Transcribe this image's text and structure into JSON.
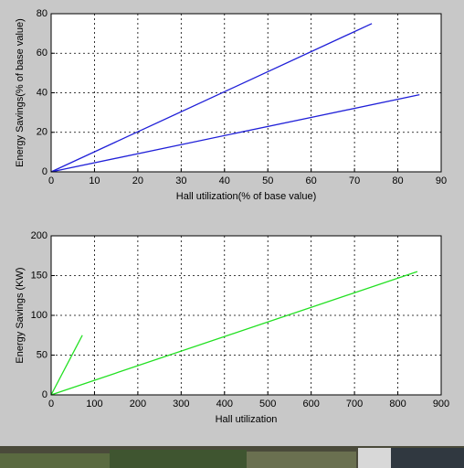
{
  "chart_data": [
    {
      "type": "line",
      "xlabel": "Hall utilization(% of base value)",
      "ylabel": "Energy Savings(% of base value)",
      "xlim": [
        0,
        90
      ],
      "xticks": [
        0,
        10,
        20,
        30,
        40,
        50,
        60,
        70,
        80,
        90
      ],
      "ylim": [
        0,
        80
      ],
      "yticks": [
        0,
        20,
        40,
        60,
        80
      ],
      "grid": true,
      "series": [
        {
          "color": "#2020d8",
          "x": [
            0,
            74
          ],
          "values": [
            0,
            75
          ]
        },
        {
          "color": "#2020d8",
          "x": [
            0,
            85
          ],
          "values": [
            0,
            39
          ]
        }
      ]
    },
    {
      "type": "line",
      "xlabel": "Hall utilization",
      "ylabel": "Energy Savings (KW)",
      "xlim": [
        0,
        900
      ],
      "xticks": [
        0,
        100,
        200,
        300,
        400,
        500,
        600,
        700,
        800,
        900
      ],
      "ylim": [
        0,
        200
      ],
      "yticks": [
        0,
        50,
        100,
        150,
        200
      ],
      "grid": true,
      "series": [
        {
          "color": "#22e022",
          "x": [
            0,
            72
          ],
          "values": [
            0,
            75
          ]
        },
        {
          "color": "#22e022",
          "x": [
            0,
            845
          ],
          "values": [
            0,
            155
          ]
        }
      ]
    }
  ]
}
